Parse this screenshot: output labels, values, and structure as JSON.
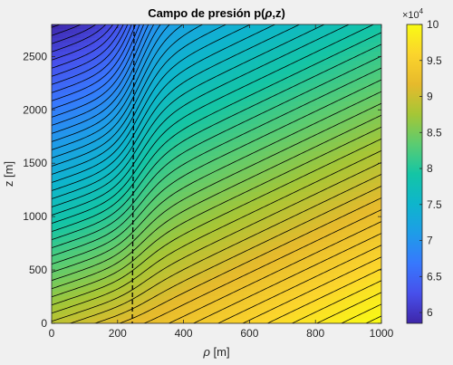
{
  "chart_data": {
    "type": "heatmap",
    "title_prefix": "Campo de presión p(",
    "title_rho": "ρ",
    "title_suffix": ",z)",
    "xlabel_symbol": "ρ",
    "xlabel_unit": " [m]",
    "ylabel": "z [m]",
    "xlim": [
      0,
      1000
    ],
    "ylim": [
      0,
      2800
    ],
    "x_ticks": [
      0,
      200,
      400,
      600,
      800,
      1000
    ],
    "x_tick_labels": [
      "0",
      "200",
      "400",
      "600",
      "800",
      "1000"
    ],
    "y_ticks": [
      0,
      500,
      1000,
      1500,
      2000,
      2500
    ],
    "y_tick_labels": [
      "0",
      "500",
      "1000",
      "1500",
      "2000",
      "2500"
    ],
    "colorbar": {
      "multiplier_base": "×10",
      "multiplier_exp": "4",
      "range": [
        58500,
        100000
      ],
      "ticks": [
        60000,
        65000,
        70000,
        75000,
        80000,
        85000,
        90000,
        95000,
        100000
      ],
      "tick_labels": [
        "6",
        "6.5",
        "7",
        "7.5",
        "8",
        "8.5",
        "9",
        "9.5",
        "10"
      ],
      "colormap": "parula"
    },
    "field_model": {
      "p_surface": 89000,
      "rho_gradient": 11.1,
      "p_top_reservoir": 58600,
      "p_top_far": 68000,
      "boundary_rho": 250,
      "transition_width": 250
    },
    "contour_count": 50,
    "dashed_line_rho": 250,
    "grid": false
  }
}
